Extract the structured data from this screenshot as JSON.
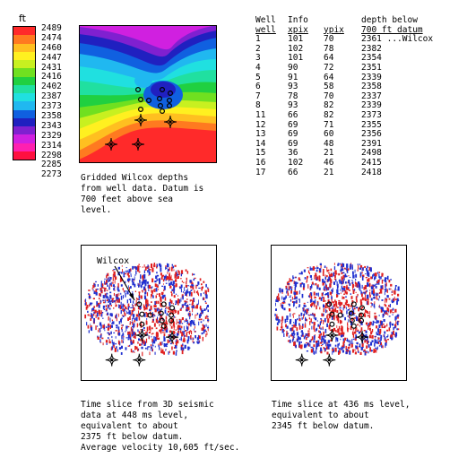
{
  "colorbar": {
    "unit": "ft",
    "ticks": [
      "2489",
      "2474",
      "2460",
      "2447",
      "2431",
      "2416",
      "2402",
      "2387",
      "2373",
      "2358",
      "2343",
      "2329",
      "2314",
      "2298",
      "2285",
      "2273"
    ],
    "colors": [
      "#ff2a2a",
      "#ff7a20",
      "#ffbf20",
      "#fff020",
      "#c8f020",
      "#70e020",
      "#20d040",
      "#20e0a0",
      "#20e0e0",
      "#20b8f0",
      "#1060e0",
      "#2020c0",
      "#8020d0",
      "#d020e0",
      "#ff20b0",
      "#ff1040"
    ]
  },
  "table": {
    "header1": [
      "Well",
      "Info",
      "",
      "depth below"
    ],
    "header2": [
      "well",
      "xpix",
      "ypix",
      "700 ft datum"
    ],
    "rows": [
      [
        "1",
        "101",
        "70",
        "2361 ...Wilcox"
      ],
      [
        "2",
        "102",
        "78",
        "2382"
      ],
      [
        "3",
        "101",
        "64",
        "2354"
      ],
      [
        "4",
        "90",
        "72",
        "2351"
      ],
      [
        "5",
        "91",
        "64",
        "2339"
      ],
      [
        "6",
        "93",
        "58",
        "2358"
      ],
      [
        "7",
        "78",
        "70",
        "2337"
      ],
      [
        "8",
        "93",
        "82",
        "2339"
      ],
      [
        "11",
        "66",
        "82",
        "2373"
      ],
      [
        "12",
        "69",
        "71",
        "2355"
      ],
      [
        "13",
        "69",
        "60",
        "2356"
      ],
      [
        "14",
        "69",
        "48",
        "2391"
      ],
      [
        "15",
        "36",
        "21",
        "2498"
      ],
      [
        "16",
        "102",
        "46",
        "2415"
      ],
      [
        "17",
        "66",
        "21",
        "2418"
      ]
    ]
  },
  "captions": {
    "gridded": "Gridded Wilcox depths\nfrom well data. Datum is\n700 feet above sea\nlevel.",
    "slice448": "Time slice from 3D seismic\ndata at 448 ms level,\nequivalent to about\n2375 ft below datum.\nAverage velocity 10,605 ft/sec.",
    "slice436": "Time slice at 436 ms level,\nequivalent to about\n2345 ft below datum."
  },
  "annotations": {
    "wilcox_label": "Wilcox"
  },
  "icons": {
    "circle_well": "circle-well-icon",
    "star_well": "diamond-star-well-icon"
  }
}
